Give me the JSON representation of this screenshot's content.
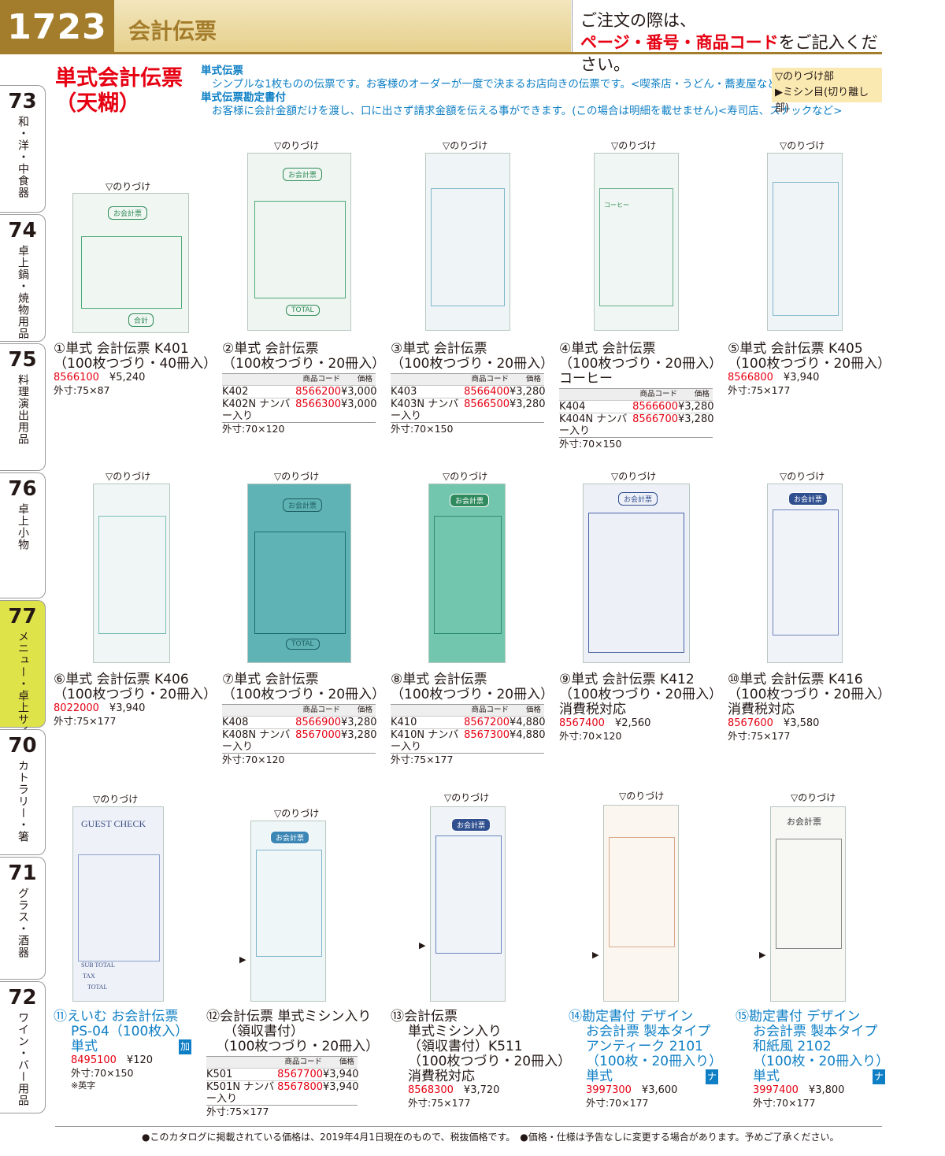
{
  "header": {
    "page_number": "1723",
    "title": "会計伝票",
    "note_line1": "ご注文の際は、",
    "note_red": "ページ・番号・商品コード",
    "note_rest": "をご記入ください。"
  },
  "side_tabs": [
    {
      "num": "73",
      "label": "和・洋・中食器"
    },
    {
      "num": "74",
      "label": "卓上鍋・焼物用品"
    },
    {
      "num": "75",
      "label": "料理演出用品"
    },
    {
      "num": "76",
      "label": "卓上小物"
    },
    {
      "num": "77",
      "label": "メニュー・卓上サイン"
    },
    {
      "num": "70",
      "label": "カトラリー・箸"
    },
    {
      "num": "71",
      "label": "グラス・酒器"
    },
    {
      "num": "72",
      "label": "ワイン・バー用品"
    }
  ],
  "intro": {
    "title_line1": "単式会計伝票",
    "title_line2": "（天糊）",
    "desc1_head": "単式伝票",
    "desc1_body": "シンプルな1枚ものの伝票です。お客様のオーダーが一度で決まるお店向きの伝票です。<喫茶店・うどん・蕎麦屋など>",
    "desc2_head": "単式伝票勘定書付",
    "desc2_body": "お客様に会計金額だけを渡し、口に出さず請求金額を伝える事ができます。(この場合は明細を載せません)<寿司店、スナックなど>",
    "legend1": "▽のりづけ部",
    "legend2": "▶ミシン目(切り離し部)"
  },
  "nori_label": "▽のりづけ",
  "table_head": {
    "code": "商品コード",
    "price": "価格"
  },
  "slip_labels": {
    "okaikei": "お会計票",
    "guest": "GUEST CHECK",
    "total": "TOTAL",
    "goukei": "合計",
    "subtotal": "SUB TOTAL",
    "tax": "TAX",
    "coffee": "コーヒー"
  },
  "products": [
    {
      "no": "①",
      "title1": "単式 会計伝票 K401",
      "title2": "（100枚つづり・40冊入）",
      "code": "8566100",
      "price": "¥5,240",
      "outer": "外寸:75×87"
    },
    {
      "no": "②",
      "title1": "単式 会計伝票",
      "title2": "（100枚つづり・20冊入）",
      "rows": [
        {
          "model": "K402",
          "code": "8566200",
          "price": "¥3,000"
        },
        {
          "model": "K402N ナンバー入り",
          "code": "8566300",
          "price": "¥3,000"
        }
      ],
      "outer": "外寸:70×120"
    },
    {
      "no": "③",
      "title1": "単式 会計伝票",
      "title2": "（100枚つづり・20冊入）",
      "rows": [
        {
          "model": "K403",
          "code": "8566400",
          "price": "¥3,280"
        },
        {
          "model": "K403N ナンバー入り",
          "code": "8566500",
          "price": "¥3,280"
        }
      ],
      "outer": "外寸:70×150"
    },
    {
      "no": "④",
      "title1": "単式 会計伝票",
      "title2": "（100枚つづり・20冊入）",
      "title3": "コーヒー",
      "rows": [
        {
          "model": "K404",
          "code": "8566600",
          "price": "¥3,280"
        },
        {
          "model": "K404N ナンバー入り",
          "code": "8566700",
          "price": "¥3,280"
        }
      ],
      "outer": "外寸:70×150"
    },
    {
      "no": "⑤",
      "title1": "単式 会計伝票 K405",
      "title2": "（100枚つづり・20冊入）",
      "code": "8566800",
      "price": "¥3,940",
      "outer": "外寸:75×177"
    },
    {
      "no": "⑥",
      "title1": "単式 会計伝票 K406",
      "title2": "（100枚つづり・20冊入）",
      "code": "8022000",
      "price": "¥3,940",
      "outer": "外寸:75×177"
    },
    {
      "no": "⑦",
      "title1": "単式 会計伝票",
      "title2": "（100枚つづり・20冊入）",
      "rows": [
        {
          "model": "K408",
          "code": "8566900",
          "price": "¥3,280"
        },
        {
          "model": "K408N ナンバー入り",
          "code": "8567000",
          "price": "¥3,280"
        }
      ],
      "outer": "外寸:70×120"
    },
    {
      "no": "⑧",
      "title1": "単式 会計伝票",
      "title2": "（100枚つづり・20冊入）",
      "rows": [
        {
          "model": "K410",
          "code": "8567200",
          "price": "¥4,880"
        },
        {
          "model": "K410N ナンバー入り",
          "code": "8567300",
          "price": "¥4,880"
        }
      ],
      "outer": "外寸:75×177"
    },
    {
      "no": "⑨",
      "title1": "単式 会計伝票 K412",
      "title2": "（100枚つづり・20冊入）",
      "title3": "消費税対応",
      "code": "8567400",
      "price": "¥2,560",
      "outer": "外寸:70×120"
    },
    {
      "no": "⑩",
      "title1": "単式 会計伝票 K416",
      "title2": "（100枚つづり・20冊入）",
      "title3": "消費税対応",
      "code": "8567600",
      "price": "¥3,580",
      "outer": "外寸:75×177"
    },
    {
      "no": "⑪",
      "title1": "えいむ お会計伝票",
      "title2": "PS-04（100枚入）",
      "title3": "単式",
      "badge": "加",
      "code": "8495100",
      "price": "¥120",
      "outer": "外寸:70×150",
      "note": "※英字"
    },
    {
      "no": "⑫",
      "title1": "会計伝票 単式ミシン入り",
      "title2": "（領収書付）",
      "title3": "（100枚つづり・20冊入）",
      "rows": [
        {
          "model": "K501",
          "code": "8567700",
          "price": "¥3,940"
        },
        {
          "model": "K501N ナンバー入り",
          "code": "8567800",
          "price": "¥3,940"
        }
      ],
      "outer": "外寸:75×177"
    },
    {
      "no": "⑬",
      "title1": "会計伝票",
      "title2": "単式ミシン入り",
      "title3": "（領収書付）K511",
      "title4": "（100枚つづり・20冊入）",
      "title5": "消費税対応",
      "code": "8568300",
      "price": "¥3,720",
      "outer": "外寸:75×177"
    },
    {
      "no": "⑭",
      "title1": "勘定書付 デザイン",
      "title2": "お会計票 製本タイプ",
      "title3": "アンティーク 2101",
      "title4": "（100枚・20冊入り）",
      "title5": "単式",
      "badge": "ナ",
      "code": "3997300",
      "price": "¥3,600",
      "outer": "外寸:70×177"
    },
    {
      "no": "⑮",
      "title1": "勘定書付 デザイン",
      "title2": "お会計票 製本タイプ",
      "title3": "和紙風 2102",
      "title4": "（100枚・20冊入り）",
      "title5": "単式",
      "badge": "ナ",
      "code": "3997400",
      "price": "¥3,800",
      "outer": "外寸:70×177"
    }
  ],
  "footer": "●このカタログに掲載されている価格は、2019年4月1日現在のもので、税抜価格です。　●価格・仕様は予告なしに変更する場合があります。予めご了承ください。"
}
